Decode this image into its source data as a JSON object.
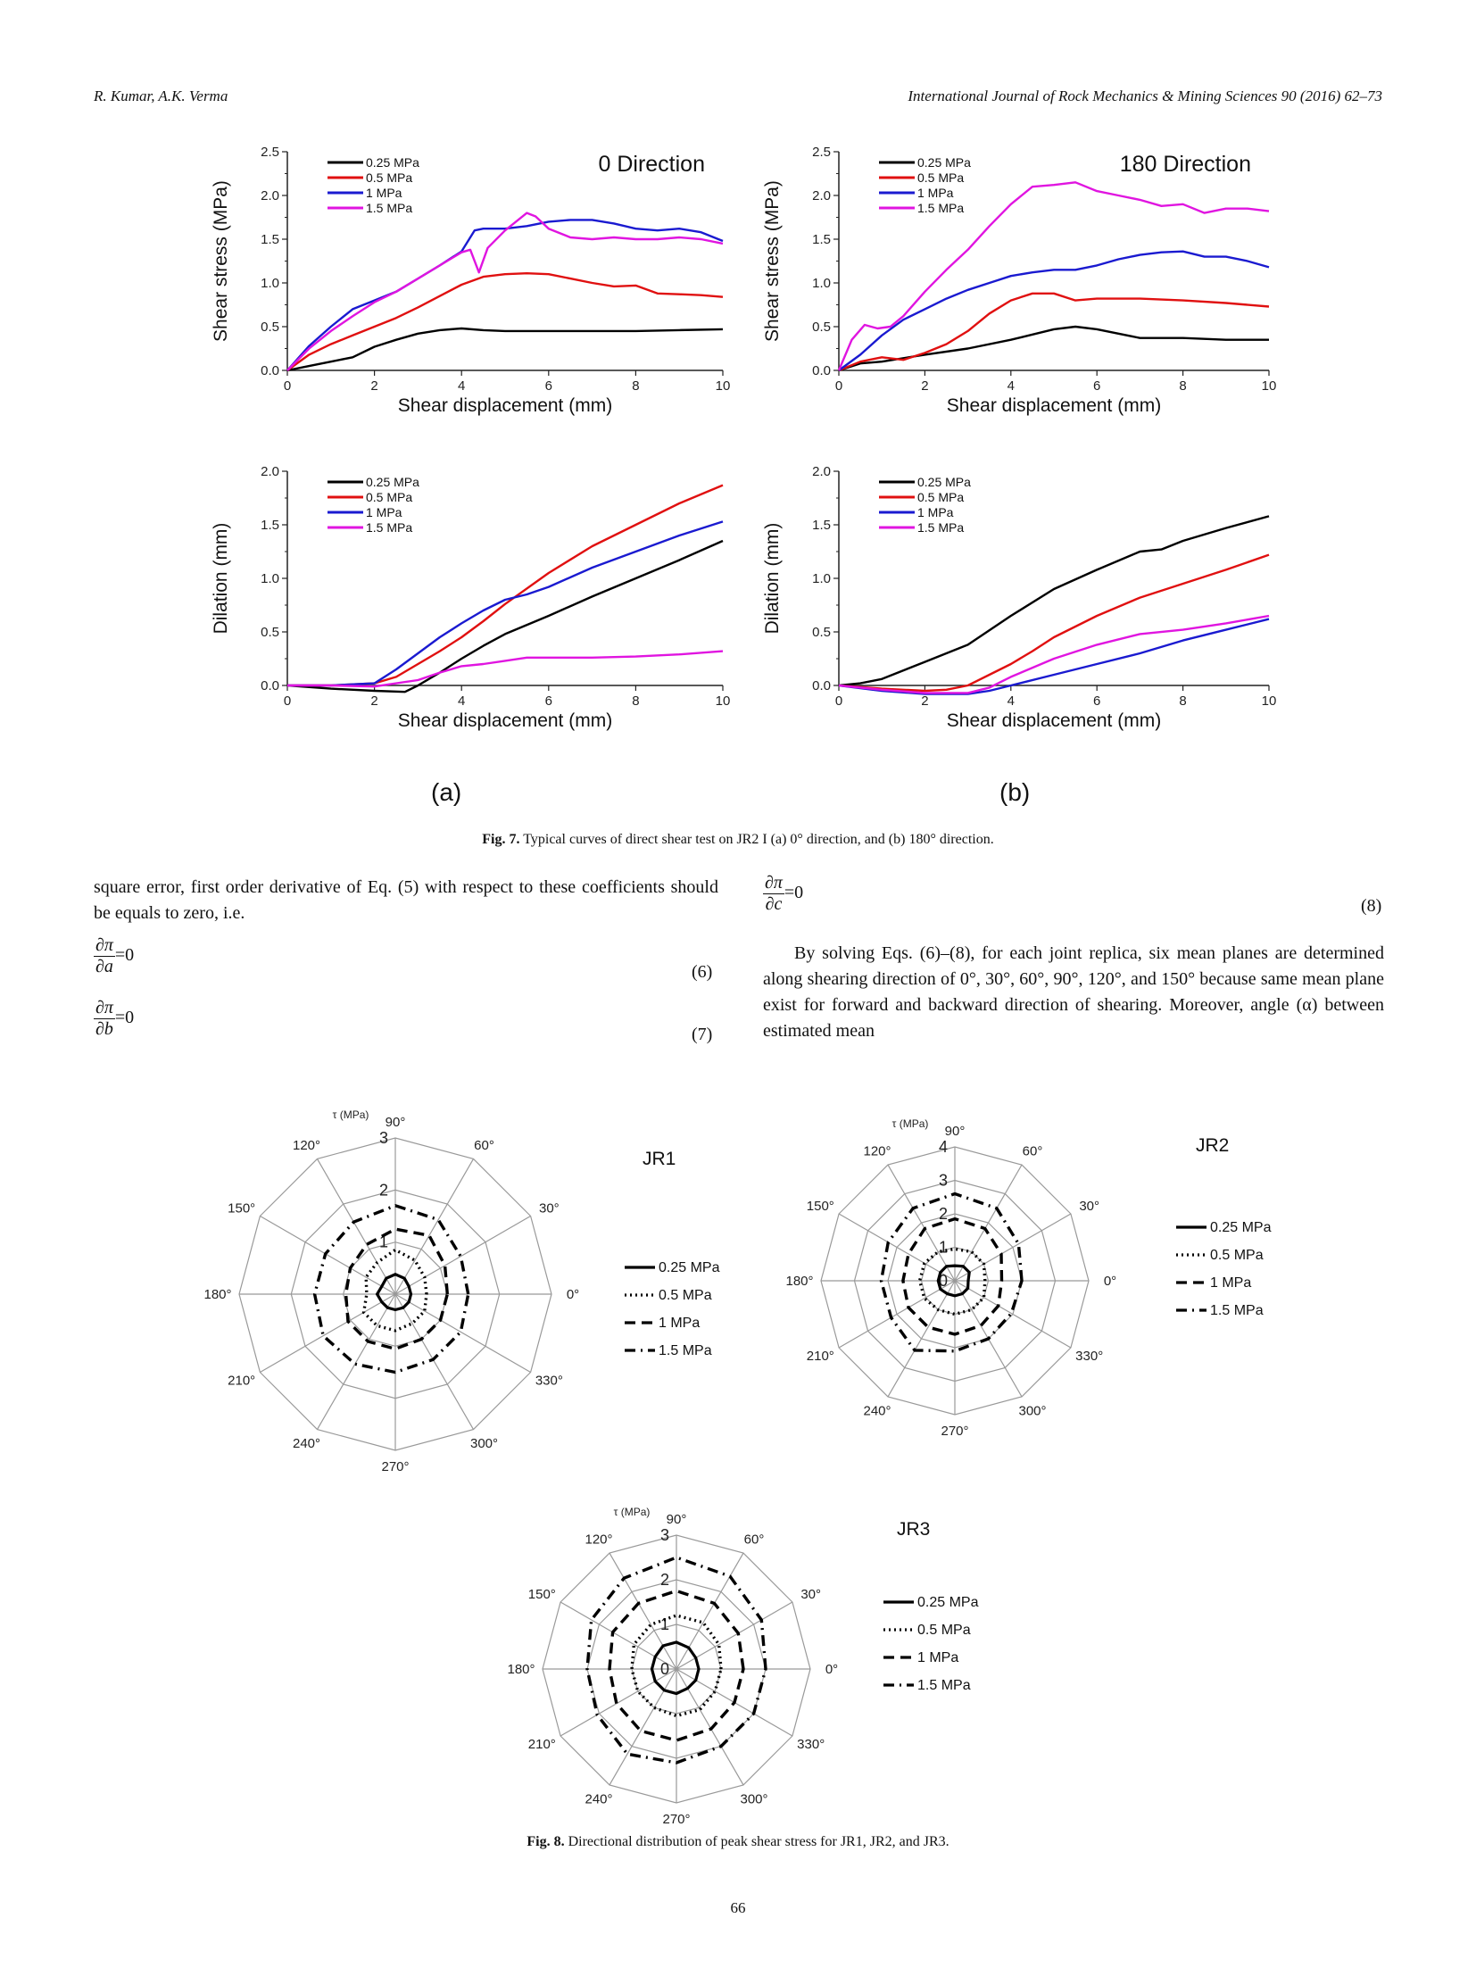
{
  "header": {
    "authors": "R. Kumar, A.K. Verma",
    "journal": "International Journal of Rock Mechanics & Mining Sciences 90 (2016) 62–73"
  },
  "fig7": {
    "label_a": "(a)",
    "label_b": "(b)",
    "caption_bold": "Fig. 7.",
    "caption_text": " Typical curves of direct shear test on JR2 I (a) 0° direction, and (b) 180° direction."
  },
  "chart_data": [
    {
      "type": "line",
      "title": "0 Direction",
      "xlabel": "Shear displacement (mm)",
      "ylabel": "Shear stress (MPa)",
      "xlim": [
        0,
        10
      ],
      "ylim": [
        0,
        2.5
      ],
      "xticks": [
        "0",
        "2",
        "4",
        "6",
        "8",
        "10"
      ],
      "yticks": [
        "0.0",
        "0.5",
        "1.0",
        "1.5",
        "2.0",
        "2.5"
      ],
      "legend_position": "top-left",
      "series": [
        {
          "name": "0.25 MPa",
          "color": "#000000",
          "x": [
            0,
            0.5,
            1,
            1.5,
            2,
            2.5,
            3,
            3.5,
            4,
            4.5,
            5,
            6,
            7,
            8,
            9,
            10
          ],
          "y": [
            0,
            0.05,
            0.1,
            0.15,
            0.27,
            0.35,
            0.42,
            0.46,
            0.48,
            0.46,
            0.45,
            0.45,
            0.45,
            0.45,
            0.46,
            0.47
          ]
        },
        {
          "name": "0.5 MPa",
          "color": "#e01010",
          "x": [
            0,
            0.5,
            1,
            1.5,
            2,
            2.5,
            3,
            3.5,
            4,
            4.5,
            5,
            5.5,
            6,
            6.5,
            7,
            7.5,
            8,
            8.5,
            9,
            9.5,
            10
          ],
          "y": [
            0,
            0.18,
            0.3,
            0.4,
            0.5,
            0.6,
            0.72,
            0.85,
            0.98,
            1.07,
            1.1,
            1.11,
            1.1,
            1.05,
            1.0,
            0.96,
            0.97,
            0.88,
            0.87,
            0.86,
            0.84
          ]
        },
        {
          "name": "1 MPa",
          "color": "#1a1ad0",
          "x": [
            0,
            0.5,
            1,
            1.5,
            2,
            2.5,
            3,
            3.5,
            4,
            4.3,
            4.5,
            5,
            5.5,
            6,
            6.5,
            7,
            7.5,
            8,
            8.5,
            9,
            9.5,
            10
          ],
          "y": [
            0,
            0.28,
            0.5,
            0.7,
            0.8,
            0.9,
            1.05,
            1.2,
            1.36,
            1.6,
            1.62,
            1.62,
            1.65,
            1.7,
            1.72,
            1.72,
            1.68,
            1.62,
            1.6,
            1.62,
            1.58,
            1.48
          ]
        },
        {
          "name": "1.5 MPa",
          "color": "#e015e0",
          "x": [
            0,
            0.5,
            1,
            1.5,
            2,
            2.5,
            3,
            3.5,
            4,
            4.2,
            4.4,
            4.6,
            5,
            5.5,
            5.7,
            6,
            6.5,
            7,
            7.5,
            8,
            8.5,
            9,
            9.5,
            10
          ],
          "y": [
            0,
            0.25,
            0.45,
            0.62,
            0.78,
            0.9,
            1.05,
            1.2,
            1.35,
            1.38,
            1.12,
            1.4,
            1.6,
            1.8,
            1.76,
            1.62,
            1.52,
            1.5,
            1.52,
            1.5,
            1.5,
            1.52,
            1.5,
            1.45
          ]
        }
      ]
    },
    {
      "type": "line",
      "title": "180 Direction",
      "xlabel": "Shear displacement (mm)",
      "ylabel": "Shear stress (MPa)",
      "xlim": [
        0,
        10
      ],
      "ylim": [
        0,
        2.5
      ],
      "xticks": [
        "0",
        "2",
        "4",
        "6",
        "8",
        "10"
      ],
      "yticks": [
        "0.0",
        "0.5",
        "1.0",
        "1.5",
        "2.0",
        "2.5"
      ],
      "legend_position": "top-left",
      "series": [
        {
          "name": "0.25 MPa",
          "color": "#000000",
          "x": [
            0,
            0.5,
            1,
            2,
            3,
            4,
            5,
            5.5,
            6,
            6.5,
            7,
            8,
            9,
            10
          ],
          "y": [
            0,
            0.08,
            0.1,
            0.18,
            0.25,
            0.35,
            0.47,
            0.5,
            0.47,
            0.42,
            0.37,
            0.37,
            0.35,
            0.35
          ]
        },
        {
          "name": "0.5 MPa",
          "color": "#e01010",
          "x": [
            0,
            0.5,
            1,
            1.5,
            2,
            2.5,
            3,
            3.5,
            4,
            4.5,
            5,
            5.5,
            6,
            7,
            8,
            9,
            10
          ],
          "y": [
            0,
            0.1,
            0.15,
            0.12,
            0.2,
            0.3,
            0.45,
            0.65,
            0.8,
            0.88,
            0.88,
            0.8,
            0.82,
            0.82,
            0.8,
            0.77,
            0.73
          ]
        },
        {
          "name": "1 MPa",
          "color": "#1a1ad0",
          "x": [
            0,
            0.5,
            1,
            1.5,
            2,
            2.5,
            3,
            3.5,
            4,
            4.5,
            5,
            5.5,
            6,
            6.5,
            7,
            7.5,
            8,
            8.5,
            9,
            9.5,
            10
          ],
          "y": [
            0,
            0.18,
            0.4,
            0.58,
            0.7,
            0.82,
            0.92,
            1.0,
            1.08,
            1.12,
            1.15,
            1.15,
            1.2,
            1.27,
            1.32,
            1.35,
            1.36,
            1.3,
            1.3,
            1.25,
            1.18
          ]
        },
        {
          "name": "1.5 MPa",
          "color": "#e015e0",
          "x": [
            0,
            0.3,
            0.6,
            0.9,
            1.2,
            1.5,
            2,
            2.5,
            3,
            3.5,
            4,
            4.5,
            5,
            5.5,
            6,
            6.5,
            7,
            7.5,
            8,
            8.5,
            9,
            9.5,
            10
          ],
          "y": [
            0,
            0.35,
            0.52,
            0.48,
            0.5,
            0.62,
            0.9,
            1.15,
            1.38,
            1.65,
            1.9,
            2.1,
            2.12,
            2.15,
            2.05,
            2.0,
            1.95,
            1.88,
            1.9,
            1.8,
            1.85,
            1.85,
            1.82
          ]
        }
      ]
    },
    {
      "type": "line",
      "xlabel": "Shear displacement (mm)",
      "ylabel": "Dilation (mm)",
      "xlim": [
        0,
        10
      ],
      "ylim": [
        0,
        2.0
      ],
      "xticks": [
        "0",
        "2",
        "4",
        "6",
        "8",
        "10"
      ],
      "yticks": [
        "0.0",
        "0.5",
        "1.0",
        "1.5",
        "2.0"
      ],
      "legend_position": "top-left",
      "series": [
        {
          "name": "0.25 MPa",
          "color": "#000000",
          "x": [
            0,
            1,
            2,
            2.7,
            3,
            3.5,
            4,
            4.5,
            5,
            6,
            7,
            8,
            9,
            10
          ],
          "y": [
            0,
            -0.03,
            -0.05,
            -0.06,
            0.0,
            0.12,
            0.25,
            0.37,
            0.48,
            0.65,
            0.83,
            1.0,
            1.17,
            1.35
          ]
        },
        {
          "name": "0.5 MPa",
          "color": "#e01010",
          "x": [
            0,
            1,
            2,
            2.5,
            3,
            3.5,
            4,
            4.5,
            5,
            6,
            7,
            8,
            9,
            10
          ],
          "y": [
            0,
            0.0,
            0.02,
            0.08,
            0.2,
            0.32,
            0.45,
            0.6,
            0.76,
            1.05,
            1.3,
            1.5,
            1.7,
            1.87
          ]
        },
        {
          "name": "1 MPa",
          "color": "#1a1ad0",
          "x": [
            0,
            1,
            2,
            2.5,
            3,
            3.5,
            4,
            4.5,
            5,
            5.5,
            6,
            7,
            8,
            9,
            10
          ],
          "y": [
            0,
            0.0,
            0.02,
            0.15,
            0.3,
            0.45,
            0.58,
            0.7,
            0.8,
            0.85,
            0.92,
            1.1,
            1.25,
            1.4,
            1.53
          ]
        },
        {
          "name": "1.5 MPa",
          "color": "#e015e0",
          "x": [
            0,
            1,
            2,
            3,
            3.5,
            4,
            4.5,
            5,
            5.5,
            6,
            7,
            8,
            9,
            10
          ],
          "y": [
            0,
            0.0,
            -0.01,
            0.05,
            0.12,
            0.18,
            0.2,
            0.23,
            0.26,
            0.26,
            0.26,
            0.27,
            0.29,
            0.32
          ]
        }
      ]
    },
    {
      "type": "line",
      "xlabel": "Shear displacement (mm)",
      "ylabel": "Dilation (mm)",
      "xlim": [
        0,
        10
      ],
      "ylim": [
        0,
        2.0
      ],
      "xticks": [
        "0",
        "2",
        "4",
        "6",
        "8",
        "10"
      ],
      "yticks": [
        "0.0",
        "0.5",
        "1.0",
        "1.5",
        "2.0"
      ],
      "legend_position": "top-left",
      "series": [
        {
          "name": "0.25 MPa",
          "color": "#000000",
          "x": [
            0,
            0.5,
            1,
            2,
            3,
            4,
            5,
            6,
            7,
            7.5,
            8,
            9,
            10
          ],
          "y": [
            0,
            0.02,
            0.06,
            0.22,
            0.38,
            0.65,
            0.9,
            1.08,
            1.25,
            1.27,
            1.35,
            1.47,
            1.58
          ]
        },
        {
          "name": "0.5 MPa",
          "color": "#e01010",
          "x": [
            0,
            1,
            2,
            2.5,
            3,
            3.5,
            4,
            4.5,
            5,
            6,
            7,
            8,
            9,
            10
          ],
          "y": [
            0,
            -0.03,
            -0.05,
            -0.04,
            0.0,
            0.1,
            0.2,
            0.32,
            0.45,
            0.65,
            0.82,
            0.95,
            1.08,
            1.22
          ]
        },
        {
          "name": "1 MPa",
          "color": "#1a1ad0",
          "x": [
            0,
            1,
            2,
            3,
            3.5,
            4,
            5,
            6,
            7,
            8,
            9,
            10
          ],
          "y": [
            0,
            -0.05,
            -0.08,
            -0.08,
            -0.05,
            0.0,
            0.1,
            0.2,
            0.3,
            0.42,
            0.52,
            0.62
          ]
        },
        {
          "name": "1.5 MPa",
          "color": "#e015e0",
          "x": [
            0,
            1,
            2,
            3,
            3.5,
            4,
            5,
            6,
            7,
            8,
            9,
            10
          ],
          "y": [
            0,
            -0.04,
            -0.07,
            -0.07,
            -0.02,
            0.08,
            0.25,
            0.38,
            0.48,
            0.52,
            0.58,
            0.65
          ]
        }
      ]
    },
    {
      "type": "radar",
      "title": "JR1",
      "unit_label": "τ (MPa)",
      "radial_ticks": [
        "1",
        "2",
        "3"
      ],
      "rmax": 3,
      "angles": [
        "0°",
        "30°",
        "60°",
        "90°",
        "120°",
        "150°",
        "180°",
        "210°",
        "240°",
        "270°",
        "300°",
        "330°"
      ],
      "series": [
        {
          "name": "0.25 MPa",
          "style": "solid",
          "values": [
            0.3,
            0.3,
            0.35,
            0.38,
            0.35,
            0.3,
            0.35,
            0.3,
            0.3,
            0.3,
            0.3,
            0.3
          ]
        },
        {
          "name": "0.5 MPa",
          "style": "dotted",
          "values": [
            0.6,
            0.65,
            0.75,
            0.85,
            0.7,
            0.65,
            0.55,
            0.7,
            0.7,
            0.7,
            0.65,
            0.65
          ]
        },
        {
          "name": "1 MPa",
          "style": "dashed",
          "values": [
            1.0,
            1.1,
            1.3,
            1.25,
            1.1,
            1.0,
            0.95,
            1.05,
            1.05,
            1.05,
            1.0,
            1.0
          ]
        },
        {
          "name": "1.5 MPa",
          "style": "dashdot",
          "values": [
            1.4,
            1.45,
            1.65,
            1.7,
            1.6,
            1.55,
            1.55,
            1.6,
            1.55,
            1.5,
            1.45,
            1.45
          ]
        }
      ]
    },
    {
      "type": "radar",
      "title": "JR2",
      "unit_label": "τ (MPa)",
      "radial_ticks": [
        "0",
        "1",
        "2",
        "3",
        "4"
      ],
      "rmax": 4,
      "angles": [
        "0°",
        "30°",
        "60°",
        "90°",
        "120°",
        "150°",
        "180°",
        "210°",
        "240°",
        "270°",
        "300°",
        "330°"
      ],
      "series": [
        {
          "name": "0.25 MPa",
          "style": "solid",
          "values": [
            0.4,
            0.5,
            0.5,
            0.45,
            0.5,
            0.5,
            0.5,
            0.5,
            0.45,
            0.45,
            0.45,
            0.45
          ]
        },
        {
          "name": "0.5 MPa",
          "style": "dotted",
          "values": [
            0.9,
            1.0,
            1.0,
            0.95,
            1.0,
            1.05,
            1.05,
            1.05,
            1.0,
            1.0,
            1.0,
            1.0
          ]
        },
        {
          "name": "1 MPa",
          "style": "dashed",
          "values": [
            1.4,
            1.6,
            1.8,
            1.85,
            1.8,
            1.6,
            1.55,
            1.6,
            1.6,
            1.6,
            1.55,
            1.5
          ]
        },
        {
          "name": "1.5 MPa",
          "style": "dashdot",
          "values": [
            2.0,
            2.2,
            2.5,
            2.6,
            2.5,
            2.3,
            2.2,
            2.2,
            2.4,
            2.1,
            2.0,
            1.95
          ]
        }
      ]
    },
    {
      "type": "radar",
      "title": "JR3",
      "unit_label": "τ (MPa)",
      "radial_ticks": [
        "0",
        "1",
        "2",
        "3"
      ],
      "rmax": 3,
      "angles": [
        "0°",
        "30°",
        "60°",
        "90°",
        "120°",
        "150°",
        "180°",
        "210°",
        "240°",
        "270°",
        "300°",
        "330°"
      ],
      "series": [
        {
          "name": "0.25 MPa",
          "style": "solid",
          "values": [
            0.5,
            0.5,
            0.55,
            0.6,
            0.6,
            0.55,
            0.55,
            0.55,
            0.55,
            0.55,
            0.5,
            0.5
          ]
        },
        {
          "name": "0.5 MPa",
          "style": "dotted",
          "values": [
            1.0,
            1.1,
            1.2,
            1.2,
            1.15,
            1.1,
            1.0,
            1.0,
            1.0,
            1.05,
            1.05,
            1.0
          ]
        },
        {
          "name": "1 MPa",
          "style": "dashed",
          "values": [
            1.5,
            1.6,
            1.7,
            1.75,
            1.7,
            1.65,
            1.5,
            1.55,
            1.6,
            1.6,
            1.55,
            1.5
          ]
        },
        {
          "name": "1.5 MPa",
          "style": "dashdot",
          "values": [
            2.0,
            2.2,
            2.4,
            2.5,
            2.35,
            2.2,
            2.0,
            2.05,
            2.2,
            2.1,
            2.0,
            2.0
          ]
        }
      ]
    }
  ],
  "text": {
    "left_para": "square error, first order derivative of Eq. (5) with respect to these coefficients should be equals to zero, i.e.",
    "right_para": "By solving Eqs. (6)–(8), for each joint replica, six mean planes are determined along shearing direction of 0°, 30°, 60°, 90°, 120°, and 150° because same mean plane exist for forward and backward direction of shearing. Moreover, angle (α) between estimated mean",
    "eq6_num": "∂π",
    "eq6_den": "∂a",
    "eq6_rhs": "=0",
    "eq6_label": "(6)",
    "eq7_num": "∂π",
    "eq7_den": "∂b",
    "eq7_rhs": "=0",
    "eq7_label": "(7)",
    "eq8_num": "∂π",
    "eq8_den": "∂c",
    "eq8_rhs": "=0",
    "eq8_label": "(8)"
  },
  "fig8": {
    "caption_bold": "Fig. 8.",
    "caption_text": " Directional distribution of peak shear stress for JR1, JR2, and JR3."
  },
  "page_number": "66"
}
